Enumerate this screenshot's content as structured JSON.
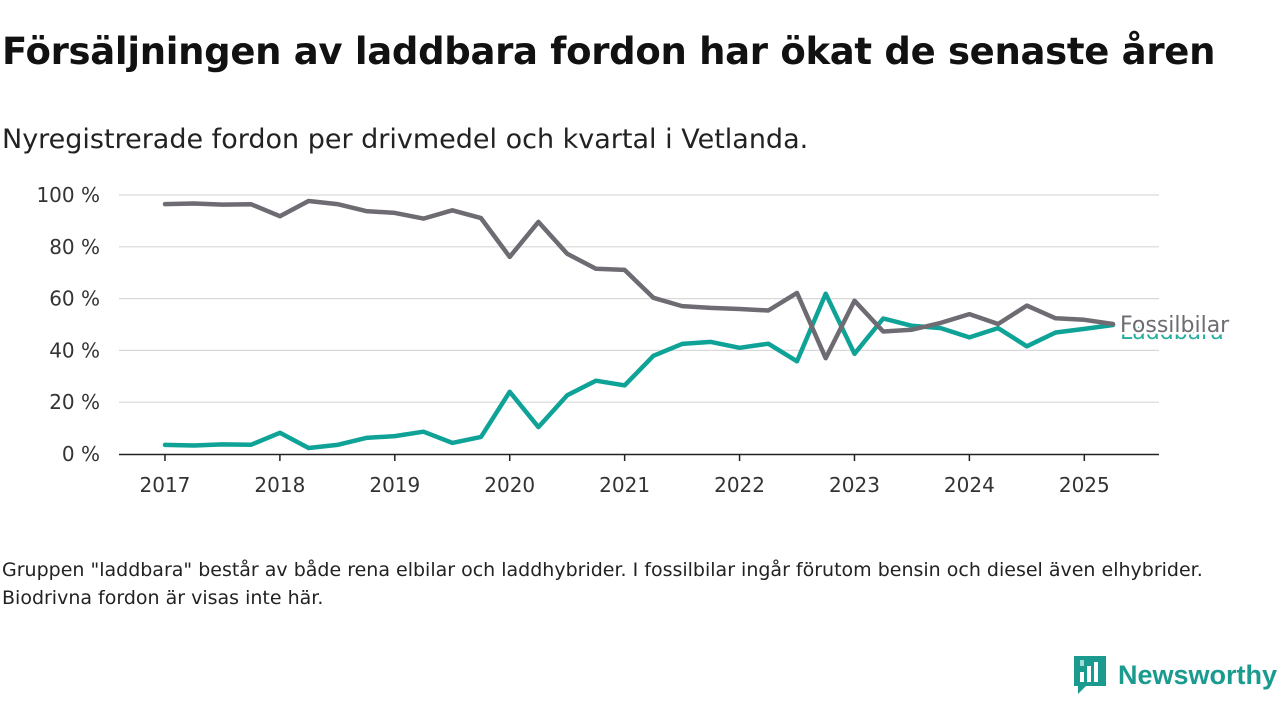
{
  "header": {
    "title": "Försäljningen av laddbara fordon har ökat de senaste åren",
    "subtitle": "Nyregistrerade fordon per drivmedel och kvartal i Vetlanda."
  },
  "footer": {
    "note": "Gruppen \"laddbara\" består av både rena elbilar och laddhybrider. I fossilbilar ingår förutom bensin och diesel även elhybrider. Biodrivna fordon är visas inte här.",
    "brand": "Newsworthy",
    "brand_icon": "newsworthy-logo-icon"
  },
  "chart_data": {
    "type": "line",
    "title": "Försäljningen av laddbara fordon har ökat de senaste åren",
    "subtitle": "Nyregistrerade fordon per drivmedel och kvartal i Vetlanda.",
    "xlabel": "",
    "ylabel": "",
    "x_ticks": [
      "2017",
      "2018",
      "2019",
      "2020",
      "2021",
      "2022",
      "2023",
      "2024",
      "2025"
    ],
    "x_range": [
      2016.6,
      2025.65
    ],
    "y_ticks": [
      "0 %",
      "20 %",
      "40 %",
      "60 %",
      "80 %",
      "100 %"
    ],
    "y_tick_values": [
      0,
      20,
      40,
      60,
      80,
      100
    ],
    "ylim": [
      0,
      100
    ],
    "grid": "horizontal",
    "legend": "direct labels at line ends",
    "x": [
      2017.0,
      2017.25,
      2017.5,
      2017.75,
      2018.0,
      2018.25,
      2018.5,
      2018.75,
      2019.0,
      2019.25,
      2019.5,
      2019.75,
      2020.0,
      2020.25,
      2020.5,
      2020.75,
      2021.0,
      2021.25,
      2021.5,
      2021.75,
      2022.0,
      2022.25,
      2022.5,
      2022.75,
      2023.0,
      2023.25,
      2023.5,
      2023.75,
      2024.0,
      2024.25,
      2024.5,
      2024.75,
      2025.0,
      2025.25
    ],
    "series": [
      {
        "name": "Fossilbilar",
        "color": "#6e6b72",
        "values": [
          96.5,
          96.7,
          96.3,
          96.4,
          91.8,
          97.7,
          96.5,
          93.8,
          93.1,
          90.9,
          94.1,
          91.1,
          76.1,
          89.6,
          77.3,
          71.5,
          71.1,
          60.3,
          57.1,
          56.4,
          56.0,
          55.4,
          62.2,
          37.0,
          59.2,
          47.3,
          48.0,
          50.6,
          54.0,
          50.2,
          57.3,
          52.4,
          51.8,
          50.2
        ]
      },
      {
        "name": "Laddbara",
        "color": "#0fa397",
        "values": [
          3.5,
          3.3,
          3.7,
          3.6,
          8.2,
          2.3,
          3.5,
          6.2,
          6.9,
          8.6,
          4.3,
          6.6,
          24.0,
          10.4,
          22.7,
          28.3,
          26.5,
          37.9,
          42.5,
          43.3,
          41.0,
          42.6,
          35.8,
          61.9,
          38.7,
          52.3,
          49.5,
          48.6,
          45.0,
          48.6,
          41.6,
          46.9,
          48.3,
          49.8
        ]
      }
    ]
  }
}
